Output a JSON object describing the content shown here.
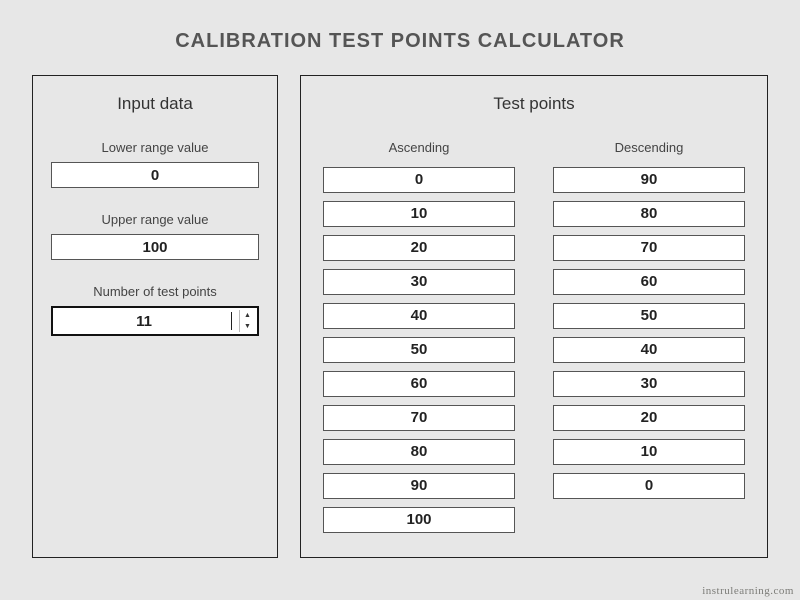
{
  "title": "CALIBRATION TEST POINTS CALCULATOR",
  "input_panel": {
    "heading": "Input data",
    "lower": {
      "label": "Lower range value",
      "value": "0"
    },
    "upper": {
      "label": "Upper range value",
      "value": "100"
    },
    "count": {
      "label": "Number of test points",
      "value": "11"
    }
  },
  "results_panel": {
    "heading": "Test points",
    "ascending": {
      "label": "Ascending",
      "values": [
        "0",
        "10",
        "20",
        "30",
        "40",
        "50",
        "60",
        "70",
        "80",
        "90",
        "100"
      ]
    },
    "descending": {
      "label": "Descending",
      "values": [
        "90",
        "80",
        "70",
        "60",
        "50",
        "40",
        "30",
        "20",
        "10",
        "0"
      ]
    }
  },
  "watermark": "instrulearning.com",
  "style": {
    "background_color": "#e7e7e7",
    "border_color": "#222222",
    "box_bg": "#ffffff",
    "text_color": "#333333",
    "value_font_weight": "bold"
  }
}
